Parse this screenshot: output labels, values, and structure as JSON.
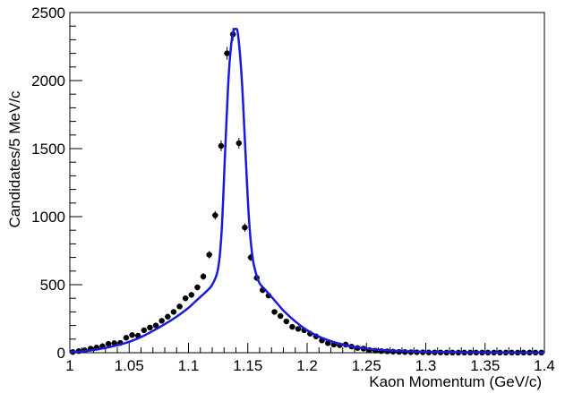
{
  "chart_data": {
    "type": "scatter",
    "xlabel": "Kaon Momentum (GeV/c)",
    "ylabel": "Candidates/5 MeV/c",
    "xlim": [
      1.0,
      1.4
    ],
    "ylim": [
      0,
      2500
    ],
    "x_ticks": [
      "1",
      "1.05",
      "1.1",
      "1.15",
      "1.2",
      "1.25",
      "1.3",
      "1.35",
      "1.4"
    ],
    "y_ticks": [
      "0",
      "500",
      "1000",
      "1500",
      "2000",
      "2500"
    ],
    "grid": false,
    "legend": "none",
    "colors": {
      "points": "#000000",
      "fit": "#1a1adc"
    },
    "series": [
      {
        "kind": "points",
        "x": [
          1.0025,
          1.0075,
          1.0125,
          1.0175,
          1.0225,
          1.0275,
          1.0325,
          1.0375,
          1.0425,
          1.0475,
          1.0525,
          1.0575,
          1.0625,
          1.0675,
          1.0725,
          1.0775,
          1.0825,
          1.0875,
          1.0925,
          1.0975,
          1.1025,
          1.1075,
          1.1125,
          1.1175,
          1.1225,
          1.1275,
          1.1325,
          1.1375,
          1.1425,
          1.1475,
          1.1525,
          1.1575,
          1.1625,
          1.1675,
          1.1725,
          1.1775,
          1.1825,
          1.1875,
          1.1925,
          1.1975,
          1.2025,
          1.2075,
          1.2125,
          1.2175,
          1.2225,
          1.2275,
          1.2325,
          1.2375,
          1.2425,
          1.2475,
          1.2525,
          1.2575,
          1.2625,
          1.2675,
          1.2725,
          1.2775,
          1.2825,
          1.2875,
          1.2925,
          1.2975,
          1.3025,
          1.3075,
          1.3125,
          1.3175,
          1.3225,
          1.3275,
          1.3325,
          1.3375,
          1.3425,
          1.3475,
          1.3525,
          1.3575,
          1.3625,
          1.3675,
          1.3725,
          1.3775,
          1.3825,
          1.3875,
          1.3925,
          1.3975
        ],
        "y": [
          5,
          12,
          18,
          30,
          38,
          48,
          65,
          70,
          72,
          110,
          130,
          125,
          165,
          185,
          200,
          235,
          265,
          300,
          340,
          400,
          425,
          480,
          560,
          720,
          1010,
          1520,
          2200,
          2340,
          1540,
          920,
          700,
          550,
          460,
          420,
          300,
          270,
          230,
          190,
          175,
          165,
          140,
          120,
          90,
          70,
          60,
          55,
          60,
          45,
          35,
          30,
          20,
          15,
          12,
          10,
          8,
          6,
          5,
          4,
          3,
          3,
          2,
          2,
          2,
          1,
          1,
          1,
          1,
          1,
          1,
          1,
          1,
          1,
          1,
          1,
          1,
          1,
          1,
          1,
          1,
          1
        ],
        "errors": [
          2,
          4,
          4,
          6,
          6,
          7,
          8,
          8,
          9,
          10,
          11,
          11,
          13,
          14,
          14,
          15,
          16,
          17,
          18,
          20,
          21,
          22,
          24,
          27,
          32,
          39,
          47,
          48,
          39,
          30,
          26,
          23,
          21,
          20,
          17,
          16,
          15,
          14,
          13,
          13,
          12,
          11,
          9,
          8,
          8,
          7,
          8,
          7,
          6,
          5,
          4,
          4,
          3,
          3,
          3,
          2,
          2,
          2,
          2,
          2,
          1,
          1,
          1,
          1,
          1,
          1,
          1,
          1,
          1,
          1,
          1,
          1,
          1,
          1,
          1,
          1,
          1,
          1,
          1,
          1
        ]
      },
      {
        "kind": "fit",
        "x": [
          1.0,
          1.01,
          1.02,
          1.03,
          1.04,
          1.05,
          1.06,
          1.07,
          1.08,
          1.09,
          1.1,
          1.105,
          1.11,
          1.115,
          1.12,
          1.125,
          1.128,
          1.131,
          1.134,
          1.137,
          1.14,
          1.142,
          1.145,
          1.148,
          1.151,
          1.154,
          1.157,
          1.16,
          1.165,
          1.17,
          1.175,
          1.18,
          1.19,
          1.2,
          1.21,
          1.22,
          1.23,
          1.24,
          1.25,
          1.26,
          1.27,
          1.28,
          1.29,
          1.3,
          1.32,
          1.34,
          1.36,
          1.38,
          1.4
        ],
        "y": [
          3,
          10,
          20,
          35,
          55,
          80,
          115,
          160,
          210,
          265,
          330,
          370,
          410,
          450,
          500,
          620,
          900,
          1500,
          2050,
          2330,
          2380,
          2320,
          2000,
          1480,
          980,
          700,
          580,
          510,
          460,
          410,
          360,
          310,
          230,
          165,
          118,
          85,
          60,
          42,
          30,
          22,
          16,
          12,
          9,
          7,
          4,
          3,
          2,
          1,
          1
        ]
      }
    ]
  }
}
